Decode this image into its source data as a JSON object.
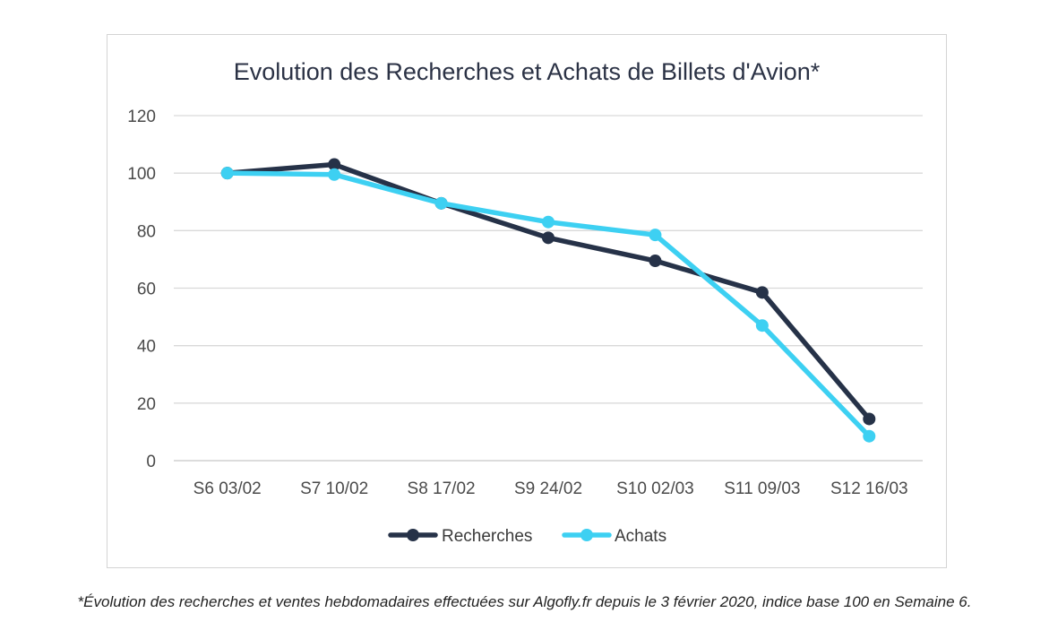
{
  "chart_data": {
    "type": "line",
    "title": "Evolution des Recherches et Achats de Billets d'Avion*",
    "categories": [
      "S6 03/02",
      "S7 10/02",
      "S8 17/02",
      "S9 24/02",
      "S10 02/03",
      "S11 09/03",
      "S12 16/03"
    ],
    "series": [
      {
        "name": "Recherches",
        "color": "#263248",
        "values": [
          100,
          103,
          89.5,
          77.5,
          69.5,
          58.5,
          14.5
        ]
      },
      {
        "name": "Achats",
        "color": "#3dd0f2",
        "values": [
          100,
          99.5,
          89.5,
          83,
          78.5,
          47,
          8.5
        ]
      }
    ],
    "ylim": [
      0,
      120
    ],
    "yticks": [
      "0",
      "20",
      "40",
      "60",
      "80",
      "100",
      "120"
    ],
    "grid": true,
    "legend_position": "bottom"
  },
  "footnote": "*Évolution des recherches et ventes hebdomadaires effectuées sur Algofly.fr depuis le 3 février 2020, indice base 100 en Semaine 6."
}
